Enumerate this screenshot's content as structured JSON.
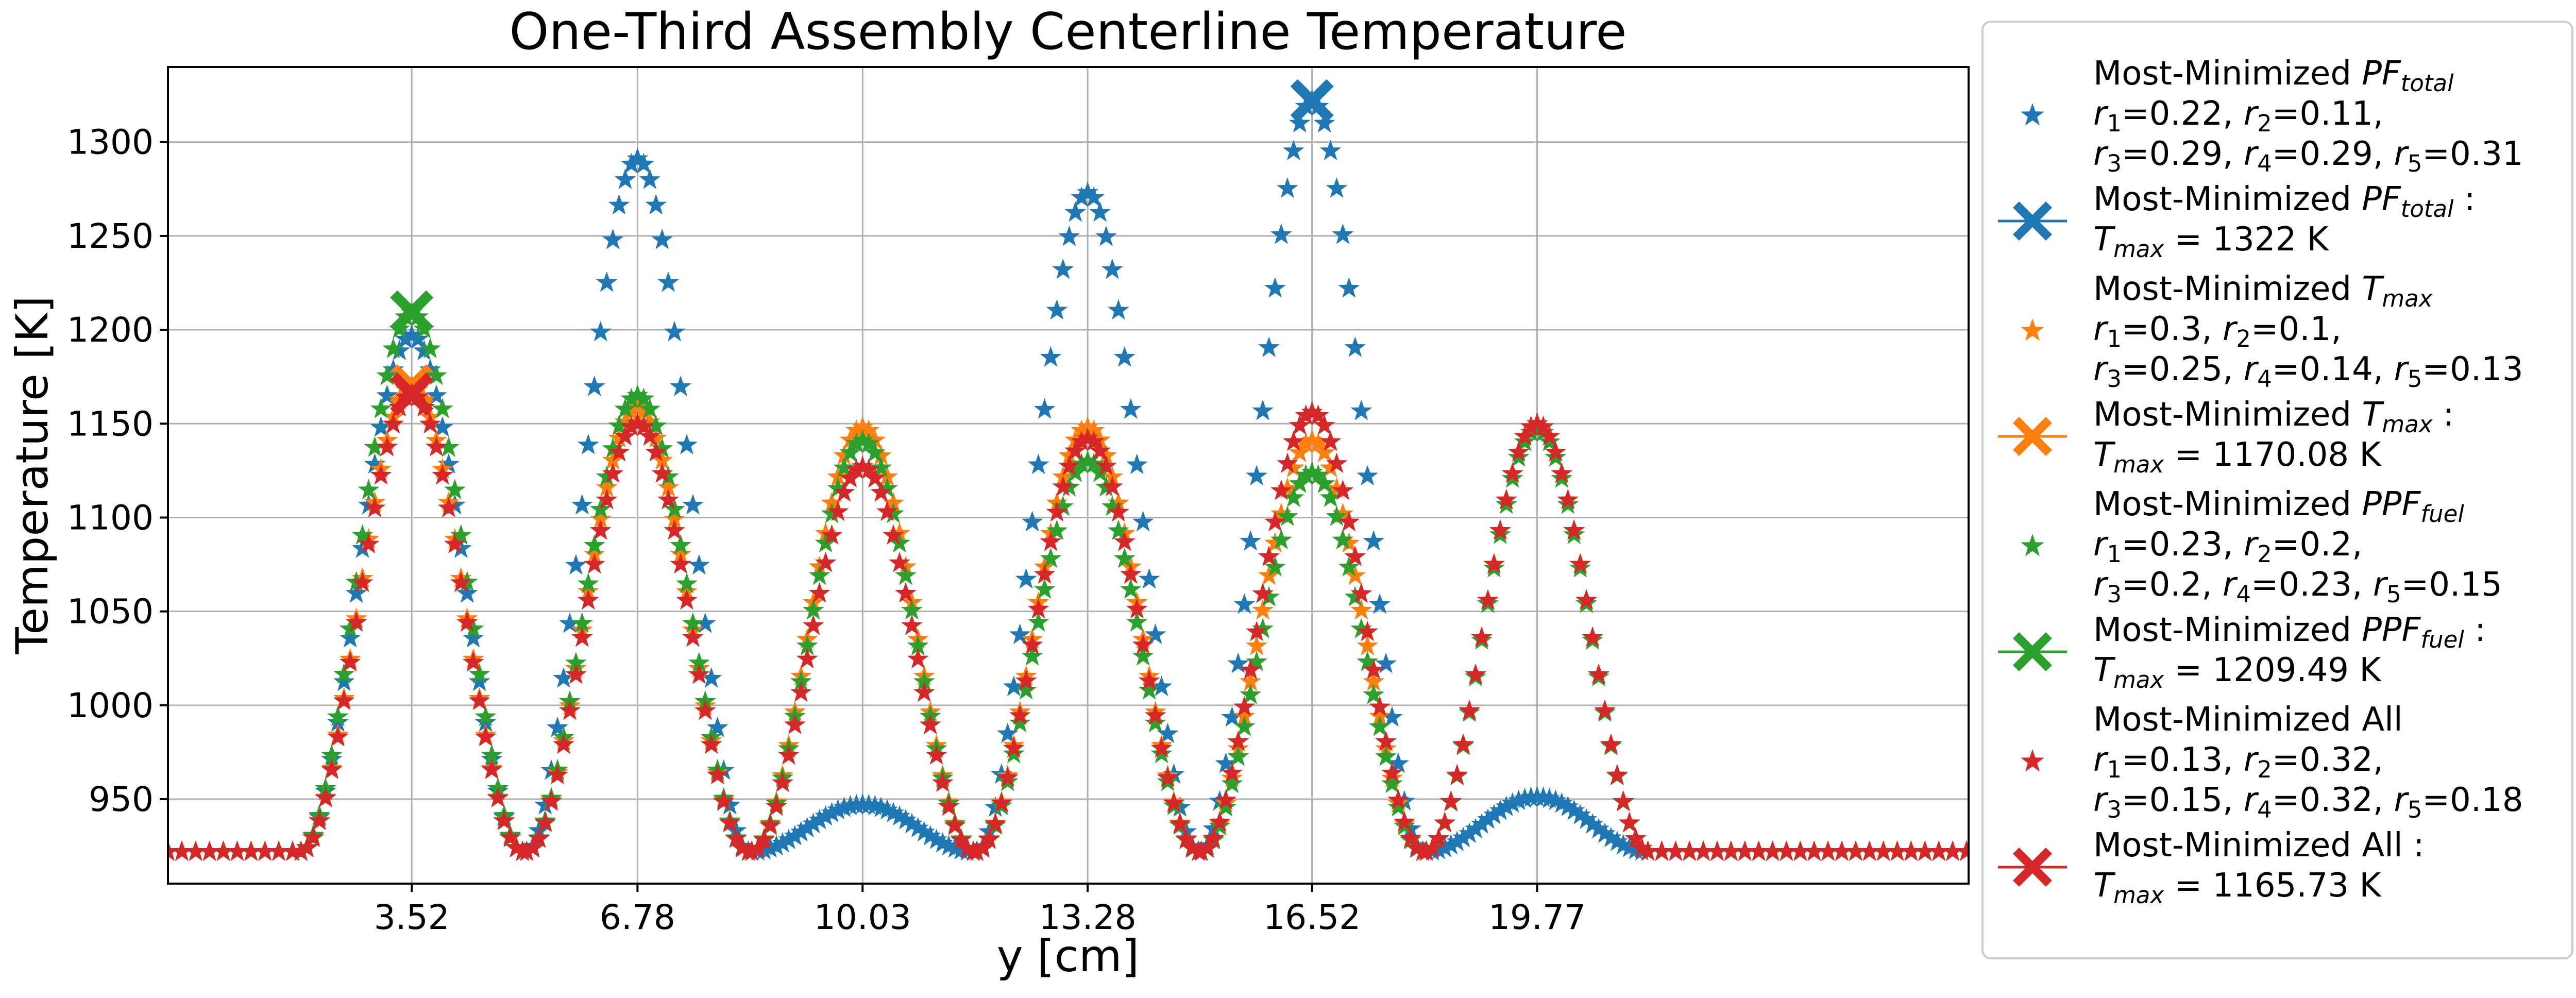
{
  "chart_data": {
    "type": "scatter",
    "title": "One-Third Assembly Centerline Temperature",
    "xlabel": "y [cm]",
    "ylabel": "Temperature [K]",
    "xlim": [
      0,
      26.0
    ],
    "ylim": [
      905,
      1340
    ],
    "xticks": [
      3.52,
      6.78,
      10.03,
      13.28,
      16.52,
      19.77
    ],
    "xtick_labels": [
      "3.52",
      "6.78",
      "10.03",
      "13.28",
      "16.52",
      "19.77"
    ],
    "yticks": [
      950,
      1000,
      1050,
      1100,
      1150,
      1200,
      1250,
      1300
    ],
    "ytick_labels": [
      "950",
      "1000",
      "1050",
      "1100",
      "1150",
      "1200",
      "1250",
      "1300"
    ],
    "grid": true,
    "legend_position": "outside-right",
    "colors": {
      "blue": "#1f77b4",
      "orange": "#ff7f0e",
      "green": "#2ca02c",
      "red": "#d62728"
    },
    "base_temperature": 922,
    "series": [
      {
        "name": "Most-Minimized PF_total",
        "legend_lines": [
          {
            "parts": [
              {
                "t": "Most-Minimized "
              },
              {
                "t": "PF",
                "i": true
              },
              {
                "t": "total",
                "i": true,
                "sub": true
              }
            ]
          },
          {
            "parts": [
              {
                "t": " "
              },
              {
                "t": "r",
                "i": true
              },
              {
                "t": "1",
                "sub": true
              },
              {
                "t": "=0.22, "
              },
              {
                "t": "r",
                "i": true
              },
              {
                "t": "2",
                "sub": true
              },
              {
                "t": "=0.11,"
              }
            ]
          },
          {
            "parts": [
              {
                "t": " "
              },
              {
                "t": "r",
                "i": true
              },
              {
                "t": "3",
                "sub": true
              },
              {
                "t": "=0.29, "
              },
              {
                "t": "r",
                "i": true
              },
              {
                "t": "4",
                "sub": true
              },
              {
                "t": "=0.29, "
              },
              {
                "t": "r",
                "i": true
              },
              {
                "t": "5",
                "sub": true
              },
              {
                "t": "=0.31"
              }
            ]
          }
        ],
        "max_legend_lines": [
          {
            "parts": [
              {
                "t": "Most-Minimized "
              },
              {
                "t": "PF",
                "i": true
              },
              {
                "t": "total",
                "i": true,
                "sub": true
              },
              {
                "t": " :"
              }
            ]
          },
          {
            "parts": [
              {
                "t": " "
              },
              {
                "t": "T",
                "i": true
              },
              {
                "t": "max",
                "i": true,
                "sub": true
              },
              {
                "t": " = 1322 K"
              }
            ]
          }
        ],
        "color": "#1f77b4",
        "peaks": [
          {
            "center": 3.52,
            "peak": 1197,
            "halfwidth": 1.6,
            "pts": 37
          },
          {
            "center": 6.78,
            "peak": 1291,
            "halfwidth": 1.6,
            "pts": 37
          },
          {
            "center": 10.03,
            "peak": 947,
            "halfwidth": 1.6,
            "pts": 37
          },
          {
            "center": 13.28,
            "peak": 1273,
            "halfwidth": 1.6,
            "pts": 37
          },
          {
            "center": 16.52,
            "peak": 1322,
            "halfwidth": 1.6,
            "pts": 37
          },
          {
            "center": 19.77,
            "peak": 951,
            "halfwidth": 1.6,
            "pts": 37
          }
        ],
        "tmax": {
          "x": 16.52,
          "y": 1322
        }
      },
      {
        "name": "Most-Minimized T_max",
        "legend_lines": [
          {
            "parts": [
              {
                "t": "Most-Minimized "
              },
              {
                "t": "T",
                "i": true
              },
              {
                "t": "max",
                "i": true,
                "sub": true
              }
            ]
          },
          {
            "parts": [
              {
                "t": " "
              },
              {
                "t": "r",
                "i": true
              },
              {
                "t": "1",
                "sub": true
              },
              {
                "t": "=0.3, "
              },
              {
                "t": "r",
                "i": true
              },
              {
                "t": "2",
                "sub": true
              },
              {
                "t": "=0.1,"
              }
            ]
          },
          {
            "parts": [
              {
                "t": " "
              },
              {
                "t": "r",
                "i": true
              },
              {
                "t": "3",
                "sub": true
              },
              {
                "t": "=0.25, "
              },
              {
                "t": "r",
                "i": true
              },
              {
                "t": "4",
                "sub": true
              },
              {
                "t": "=0.14, "
              },
              {
                "t": "r",
                "i": true
              },
              {
                "t": "5",
                "sub": true
              },
              {
                "t": "=0.13"
              }
            ]
          }
        ],
        "max_legend_lines": [
          {
            "parts": [
              {
                "t": "Most-Minimized "
              },
              {
                "t": "T",
                "i": true
              },
              {
                "t": "max",
                "i": true,
                "sub": true
              },
              {
                "t": " :"
              }
            ]
          },
          {
            "parts": [
              {
                "t": " "
              },
              {
                "t": "T",
                "i": true
              },
              {
                "t": "max",
                "i": true,
                "sub": true
              },
              {
                "t": " = 1170.08 K"
              }
            ]
          }
        ],
        "color": "#ff7f0e",
        "peaks": [
          {
            "center": 3.52,
            "peak": 1170,
            "halfwidth": 1.6,
            "pts": 37
          },
          {
            "center": 6.78,
            "peak": 1158,
            "halfwidth": 1.6,
            "pts": 37
          },
          {
            "center": 10.03,
            "peak": 1148,
            "halfwidth": 1.6,
            "pts": 37
          },
          {
            "center": 13.28,
            "peak": 1148,
            "halfwidth": 1.6,
            "pts": 37
          },
          {
            "center": 16.52,
            "peak": 1141,
            "halfwidth": 1.6,
            "pts": 37
          },
          {
            "center": 19.77,
            "peak": 1150,
            "halfwidth": 1.6,
            "pts": 37
          }
        ],
        "tmax": {
          "x": 3.52,
          "y": 1170.08
        }
      },
      {
        "name": "Most-Minimized PPF_fuel",
        "legend_lines": [
          {
            "parts": [
              {
                "t": "Most-Minimized "
              },
              {
                "t": "PPF",
                "i": true
              },
              {
                "t": "fuel",
                "i": true,
                "sub": true
              }
            ]
          },
          {
            "parts": [
              {
                "t": " "
              },
              {
                "t": "r",
                "i": true
              },
              {
                "t": "1",
                "sub": true
              },
              {
                "t": "=0.23, "
              },
              {
                "t": "r",
                "i": true
              },
              {
                "t": "2",
                "sub": true
              },
              {
                "t": "=0.2,"
              }
            ]
          },
          {
            "parts": [
              {
                "t": " "
              },
              {
                "t": "r",
                "i": true
              },
              {
                "t": "3",
                "sub": true
              },
              {
                "t": "=0.2, "
              },
              {
                "t": "r",
                "i": true
              },
              {
                "t": "4",
                "sub": true
              },
              {
                "t": "=0.23, "
              },
              {
                "t": "r",
                "i": true
              },
              {
                "t": "5",
                "sub": true
              },
              {
                "t": "=0.15"
              }
            ]
          }
        ],
        "max_legend_lines": [
          {
            "parts": [
              {
                "t": "Most-Minimized "
              },
              {
                "t": "PPF",
                "i": true
              },
              {
                "t": "fuel",
                "i": true,
                "sub": true
              },
              {
                "t": " :"
              }
            ]
          },
          {
            "parts": [
              {
                "t": " "
              },
              {
                "t": "T",
                "i": true
              },
              {
                "t": "max",
                "i": true,
                "sub": true
              },
              {
                "t": " = 1209.49 K"
              }
            ]
          }
        ],
        "color": "#2ca02c",
        "peaks": [
          {
            "center": 3.52,
            "peak": 1209,
            "halfwidth": 1.6,
            "pts": 37
          },
          {
            "center": 6.78,
            "peak": 1165,
            "halfwidth": 1.6,
            "pts": 37
          },
          {
            "center": 10.03,
            "peak": 1141,
            "halfwidth": 1.6,
            "pts": 37
          },
          {
            "center": 13.28,
            "peak": 1130,
            "halfwidth": 1.6,
            "pts": 37
          },
          {
            "center": 16.52,
            "peak": 1124,
            "halfwidth": 1.6,
            "pts": 37
          },
          {
            "center": 19.77,
            "peak": 1147,
            "halfwidth": 1.6,
            "pts": 37
          }
        ],
        "tmax": {
          "x": 3.52,
          "y": 1209.49
        }
      },
      {
        "name": "Most-Minimized All",
        "legend_lines": [
          {
            "parts": [
              {
                "t": "Most-Minimized All"
              }
            ]
          },
          {
            "parts": [
              {
                "t": " "
              },
              {
                "t": "r",
                "i": true
              },
              {
                "t": "1",
                "sub": true
              },
              {
                "t": "=0.13, "
              },
              {
                "t": "r",
                "i": true
              },
              {
                "t": "2",
                "sub": true
              },
              {
                "t": "=0.32,"
              }
            ]
          },
          {
            "parts": [
              {
                "t": " "
              },
              {
                "t": "r",
                "i": true
              },
              {
                "t": "3",
                "sub": true
              },
              {
                "t": "=0.15, "
              },
              {
                "t": "r",
                "i": true
              },
              {
                "t": "4",
                "sub": true
              },
              {
                "t": "=0.32, "
              },
              {
                "t": "r",
                "i": true
              },
              {
                "t": "5",
                "sub": true
              },
              {
                "t": "=0.18"
              }
            ]
          }
        ],
        "max_legend_lines": [
          {
            "parts": [
              {
                "t": "Most-Minimized All :"
              }
            ]
          },
          {
            "parts": [
              {
                "t": " "
              },
              {
                "t": "T",
                "i": true
              },
              {
                "t": "max",
                "i": true,
                "sub": true
              },
              {
                "t": " = 1165.73 K"
              }
            ]
          }
        ],
        "color": "#d62728",
        "peaks": [
          {
            "center": 3.52,
            "peak": 1166,
            "halfwidth": 1.6,
            "pts": 37
          },
          {
            "center": 6.78,
            "peak": 1150,
            "halfwidth": 1.6,
            "pts": 37
          },
          {
            "center": 10.03,
            "peak": 1127,
            "halfwidth": 1.6,
            "pts": 37
          },
          {
            "center": 13.28,
            "peak": 1142,
            "halfwidth": 1.6,
            "pts": 37
          },
          {
            "center": 16.52,
            "peak": 1156,
            "halfwidth": 1.6,
            "pts": 37
          },
          {
            "center": 19.77,
            "peak": 1150,
            "halfwidth": 1.6,
            "pts": 37
          }
        ],
        "tmax": {
          "x": 3.52,
          "y": 1165.73
        }
      }
    ]
  }
}
